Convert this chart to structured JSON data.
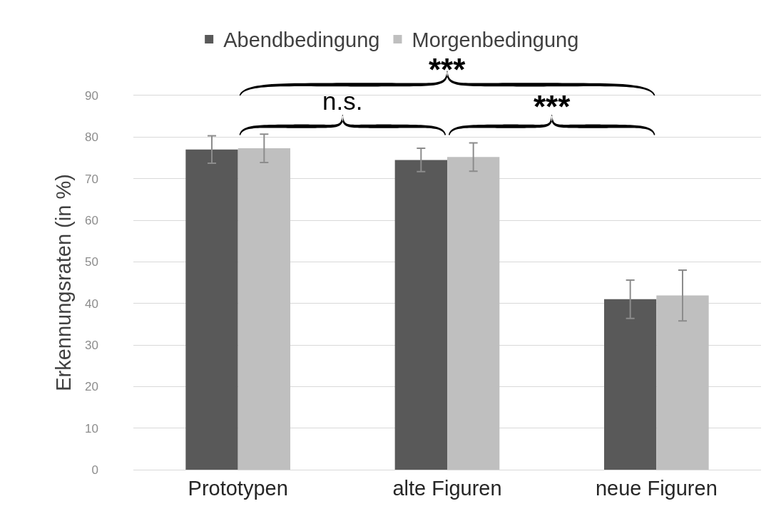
{
  "chart_data": {
    "type": "bar",
    "ylabel": "Erkennungsraten (in %)",
    "categories": [
      "Prototypen",
      "alte Figuren",
      "neue Figuren"
    ],
    "series": [
      {
        "name": "Abendbedingung",
        "color": "#595959",
        "values": [
          77.0,
          74.5,
          41.0
        ],
        "errors": [
          3.3,
          2.8,
          4.6
        ]
      },
      {
        "name": "Morgenbedingung",
        "color": "#bfbfbf",
        "values": [
          77.3,
          75.2,
          41.9
        ],
        "errors": [
          3.4,
          3.4,
          6.1
        ]
      }
    ],
    "ylim": [
      0,
      90
    ],
    "yticks": [
      0,
      10,
      20,
      30,
      40,
      50,
      60,
      70,
      80,
      90
    ],
    "grid": "y",
    "legend": "top",
    "annotations": [
      "***",
      "n.s.",
      "***"
    ]
  }
}
